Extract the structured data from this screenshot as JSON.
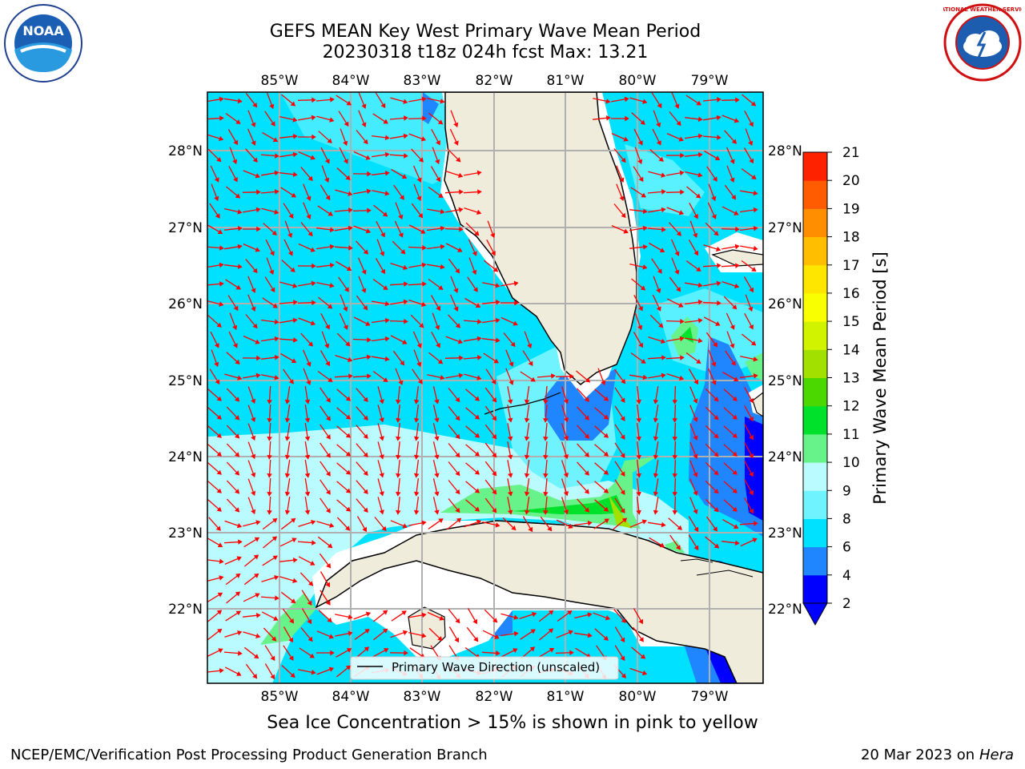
{
  "title": {
    "line1": "GEFS MEAN Key West Primary Wave Mean Period",
    "line2": "20230318 t18z 024h fcst   Max: 13.21"
  },
  "map": {
    "lon_labels": [
      "85°W",
      "84°W",
      "83°W",
      "82°W",
      "81°W",
      "80°W",
      "79°W"
    ],
    "lat_labels": [
      "28°N",
      "27°N",
      "26°N",
      "25°N",
      "24°N",
      "23°N",
      "22°N"
    ],
    "legend_text": "Primary Wave Direction (unscaled)",
    "arrow_color": "#ff0000",
    "land_color": "#efecdc"
  },
  "colorbar": {
    "label": "Primary Wave Mean Period [s]",
    "ticks": [
      "2",
      "4",
      "6",
      "8",
      "9",
      "10",
      "11",
      "12",
      "13",
      "14",
      "15",
      "16",
      "17",
      "18",
      "19",
      "20",
      "21"
    ],
    "colors": [
      "#0000ff",
      "#1f86ff",
      "#00e1ff",
      "#6ff4ff",
      "#b9fbff",
      "#67f28a",
      "#00e12b",
      "#4bd700",
      "#a2e000",
      "#d2f300",
      "#faff00",
      "#ffe600",
      "#ffbf00",
      "#ff8f00",
      "#ff5b00",
      "#ff2200"
    ]
  },
  "caption": "Sea Ice Concentration > 15% is shown in pink to yellow",
  "footer": {
    "left": "NCEP/EMC/Verification Post Processing Product Generation Branch",
    "right_date": "20 Mar 2023 on",
    "right_host": "Hera"
  },
  "logos": {
    "noaa": "NOAA",
    "nws": "NATIONAL WEATHER SERVICE"
  }
}
